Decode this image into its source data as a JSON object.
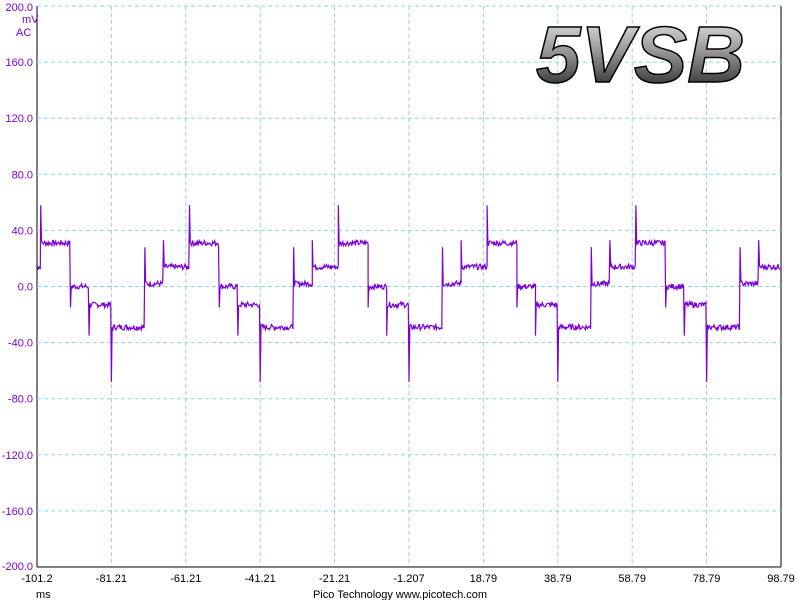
{
  "chart_data": {
    "type": "line",
    "title": "5VSB",
    "ylabel_unit": "mV",
    "coupling": "AC",
    "xlabel_unit": "ms",
    "footer": "Pico Technology   www.picotech.com",
    "xlim": [
      -101.2,
      98.79
    ],
    "ylim": [
      -200,
      200
    ],
    "x_ticks": [
      "-101.2",
      "-81.21",
      "-61.21",
      "-41.21",
      "-21.21",
      "-1.207",
      "18.79",
      "38.79",
      "58.79",
      "78.79",
      "98.79"
    ],
    "y_ticks": [
      "200.0",
      "160.0",
      "120.0",
      "80.0",
      "40.0",
      "0.0",
      "-40.0",
      "-80.0",
      "-120.0",
      "-160.0",
      "-200.0"
    ],
    "grid": true,
    "colors": {
      "trace": "#7a00d8",
      "grid": "#8fd6d6",
      "axis": "#000000"
    },
    "series": [
      {
        "period_ms": 40,
        "first_cycle_start_ms": -100.2,
        "steps": [
          {
            "start_ms": 0,
            "end_ms": 8,
            "level_mv": 31,
            "spike_mv": 58
          },
          {
            "start_ms": 8,
            "end_ms": 13,
            "level_mv": 0,
            "spike_mv": -15
          },
          {
            "start_ms": 13,
            "end_ms": 19,
            "level_mv": -13,
            "spike_mv": -35
          },
          {
            "start_ms": 19,
            "end_ms": 28,
            "level_mv": -29,
            "spike_mv": -68
          },
          {
            "start_ms": 28,
            "end_ms": 33,
            "level_mv": 2,
            "spike_mv": 28
          },
          {
            "start_ms": 33,
            "end_ms": 40,
            "level_mv": 14,
            "spike_mv": 33
          }
        ]
      }
    ]
  }
}
